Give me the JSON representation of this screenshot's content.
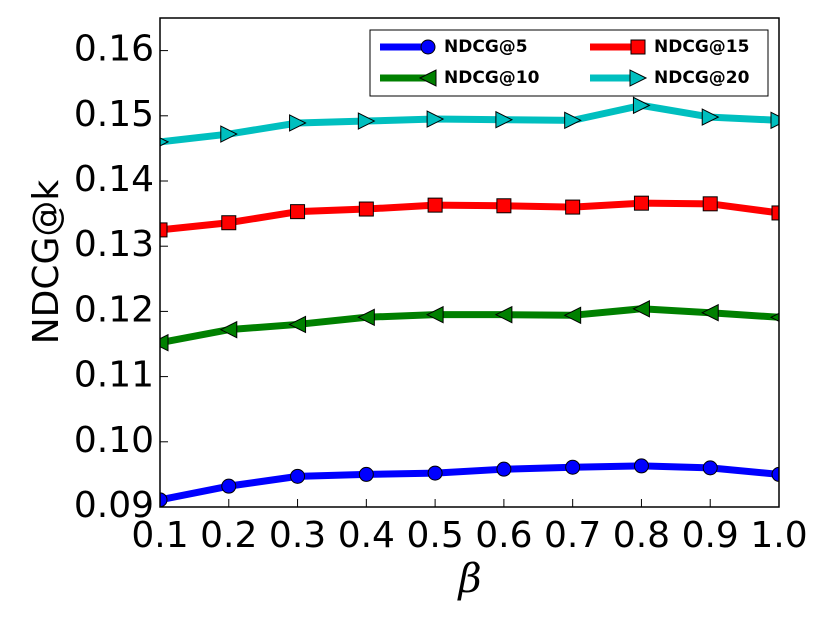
{
  "chart_data": {
    "type": "line",
    "xlabel": "β",
    "ylabel": "NDCG@k",
    "x": [
      0.1,
      0.2,
      0.3,
      0.4,
      0.5,
      0.6,
      0.7,
      0.8,
      0.9,
      1.0
    ],
    "series": [
      {
        "name": "NDCG@5",
        "color": "#0000ff",
        "marker": "circle",
        "values": [
          0.0911,
          0.0932,
          0.0947,
          0.095,
          0.0952,
          0.0958,
          0.0961,
          0.0963,
          0.096,
          0.095
        ]
      },
      {
        "name": "NDCG@10",
        "color": "#008000",
        "marker": "triangle-left",
        "values": [
          0.1152,
          0.1172,
          0.118,
          0.1191,
          0.1195,
          0.1195,
          0.1194,
          0.1204,
          0.1198,
          0.1191
        ]
      },
      {
        "name": "NDCG@15",
        "color": "#ff0000",
        "marker": "square",
        "values": [
          0.1325,
          0.1336,
          0.1353,
          0.1357,
          0.1363,
          0.1362,
          0.136,
          0.1366,
          0.1365,
          0.1351
        ]
      },
      {
        "name": "NDCG@20",
        "color": "#00bfbf",
        "marker": "triangle-right",
        "values": [
          0.146,
          0.1472,
          0.1489,
          0.1492,
          0.1495,
          0.1494,
          0.1493,
          0.1516,
          0.1498,
          0.1493
        ]
      }
    ],
    "xlim": [
      0.1,
      1.0
    ],
    "xticks": [
      0.1,
      0.2,
      0.3,
      0.4,
      0.5,
      0.6,
      0.7,
      0.8,
      0.9,
      {
        "value": 1.0,
        "label": "1.0"
      }
    ],
    "ylim": [
      0.09,
      0.165
    ],
    "yticks": [
      0.09,
      {
        "value": 0.1,
        "label": "0.10"
      },
      0.11,
      0.12,
      0.13,
      0.14,
      0.15,
      0.16
    ],
    "legend": "upper right"
  }
}
